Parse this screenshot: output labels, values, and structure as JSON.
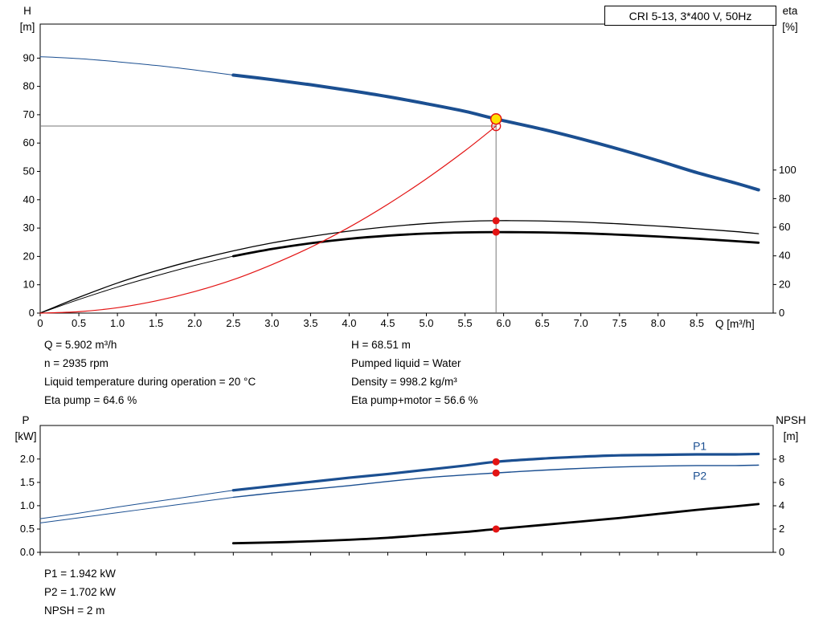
{
  "colors": {
    "curve_blue": "#1b4f91",
    "curve_black": "#000000",
    "curve_red": "#e31414",
    "marker_yellow": "#ffe000",
    "guide_gray": "#777777"
  },
  "annotations": {
    "top_left": [
      "Q = 5.902 m³/h",
      "n = 2935 rpm",
      "Liquid temperature during operation = 20 °C",
      "Eta pump = 64.6 %"
    ],
    "top_right": [
      "H = 68.51 m",
      "Pumped liquid = Water",
      "Density = 998.2 kg/m³",
      "Eta pump+motor = 56.6 %"
    ],
    "bottom": [
      "P1 = 1.942 kW",
      "P2 = 1.702 kW",
      "NPSH = 2 m"
    ]
  },
  "chart_data": [
    {
      "type": "line",
      "title": "CRI 5-13, 3*400 V, 50Hz",
      "x_axis": {
        "label": "Q [m³/h]",
        "min": 0,
        "max": 9.49,
        "tick_labels": [
          "0",
          "0.5",
          "1.0",
          "1.5",
          "2.0",
          "2.5",
          "3.0",
          "3.5",
          "4.0",
          "4.5",
          "5.0",
          "5.5",
          "6.0",
          "6.5",
          "7.0",
          "7.5",
          "8.0",
          "8.5"
        ]
      },
      "y_left": {
        "symbol": "H",
        "unit": "[m]",
        "min": 0,
        "max": 102,
        "tick_labels": [
          "0",
          "10",
          "20",
          "30",
          "40",
          "50",
          "60",
          "70",
          "80",
          "90"
        ]
      },
      "y_right": {
        "symbol": "eta",
        "unit": "[%]",
        "min": 0,
        "max": 202,
        "tick_labels": [
          "0",
          "20",
          "40",
          "60",
          "80",
          "100"
        ]
      },
      "series": [
        {
          "name": "qh-leadin",
          "axis": "left",
          "color": "#1b4f91",
          "width": 1,
          "points": [
            [
              0,
              90.5
            ],
            [
              0.5,
              89.8
            ],
            [
              1,
              88.7
            ],
            [
              1.5,
              87.4
            ],
            [
              2,
              85.8
            ],
            [
              2.5,
              84
            ]
          ]
        },
        {
          "name": "qh",
          "axis": "left",
          "color": "#1b4f91",
          "width": 4,
          "points": [
            [
              2.5,
              84
            ],
            [
              3,
              82.4
            ],
            [
              3.5,
              80.6
            ],
            [
              4,
              78.6
            ],
            [
              4.5,
              76.4
            ],
            [
              5,
              73.9
            ],
            [
              5.5,
              71.2
            ],
            [
              5.902,
              68.51
            ],
            [
              6.5,
              64.9
            ],
            [
              7,
              61.5
            ],
            [
              7.5,
              57.8
            ],
            [
              8,
              53.8
            ],
            [
              8.5,
              49.6
            ],
            [
              9,
              45.9
            ],
            [
              9.3,
              43.5
            ]
          ]
        },
        {
          "name": "eta-pump",
          "axis": "right",
          "color": "#000000",
          "width": 1.3,
          "points": [
            [
              0,
              0
            ],
            [
              0.5,
              11
            ],
            [
              1,
              21
            ],
            [
              1.5,
              29.5
            ],
            [
              2,
              37
            ],
            [
              2.5,
              43.5
            ],
            [
              3,
              49
            ],
            [
              3.5,
              53.5
            ],
            [
              4,
              57.3
            ],
            [
              4.5,
              60.3
            ],
            [
              5,
              62.6
            ],
            [
              5.5,
              64.1
            ],
            [
              5.902,
              64.6
            ],
            [
              6.5,
              64.4
            ],
            [
              7,
              63.6
            ],
            [
              7.5,
              62.4
            ],
            [
              8,
              60.8
            ],
            [
              8.5,
              59
            ],
            [
              9,
              57
            ],
            [
              9.3,
              55.5
            ]
          ]
        },
        {
          "name": "eta-pump-motor-leadin",
          "axis": "right",
          "color": "#000000",
          "width": 1,
          "points": [
            [
              0,
              0
            ],
            [
              0.5,
              9.5
            ],
            [
              1,
              18.2
            ],
            [
              1.5,
              26
            ],
            [
              2,
              33.3
            ],
            [
              2.5,
              39.8
            ]
          ]
        },
        {
          "name": "eta-pump-motor",
          "axis": "right",
          "color": "#000000",
          "width": 2.8,
          "points": [
            [
              2.5,
              39.8
            ],
            [
              3,
              44.8
            ],
            [
              3.5,
              48.8
            ],
            [
              4,
              51.9
            ],
            [
              4.5,
              54.1
            ],
            [
              5,
              55.6
            ],
            [
              5.5,
              56.4
            ],
            [
              5.902,
              56.6
            ],
            [
              6.5,
              56.4
            ],
            [
              7,
              55.8
            ],
            [
              7.5,
              54.8
            ],
            [
              8,
              53.5
            ],
            [
              8.5,
              52
            ],
            [
              9,
              50.3
            ],
            [
              9.3,
              49.2
            ]
          ]
        },
        {
          "name": "system-curve",
          "axis": "left",
          "color": "#e31414",
          "width": 1.2,
          "points": [
            [
              0,
              0
            ],
            [
              0.5,
              0.5
            ],
            [
              1,
              1.9
            ],
            [
              1.5,
              4.3
            ],
            [
              2,
              7.6
            ],
            [
              2.5,
              11.8
            ],
            [
              3,
              17.1
            ],
            [
              3.5,
              23.2
            ],
            [
              4,
              30.3
            ],
            [
              4.5,
              38.4
            ],
            [
              5,
              47.4
            ],
            [
              5.5,
              57.3
            ],
            [
              5.902,
              66
            ]
          ]
        }
      ],
      "guides": [
        {
          "type": "h",
          "axis": "left",
          "y": 66,
          "x1": 0,
          "x2": 5.902,
          "color": "#777777"
        },
        {
          "type": "v",
          "axis": "left",
          "x": 5.902,
          "y1": 68.51,
          "y2": 0,
          "color": "#777777"
        }
      ],
      "markers": [
        {
          "name": "requested-duty-marker",
          "axis": "left",
          "x": 5.902,
          "y": 66,
          "r": 5.5,
          "fill": "none",
          "stroke": "#e31414",
          "stroke_width": 1.3
        },
        {
          "name": "duty-point-marker",
          "axis": "left",
          "x": 5.902,
          "y": 68.51,
          "r": 6.5,
          "fill": "#ffe000",
          "stroke": "#e31414",
          "stroke_width": 1.5
        },
        {
          "name": "eta-pump-marker",
          "axis": "right",
          "x": 5.902,
          "y": 64.6,
          "r": 4.5,
          "fill": "#e31414"
        },
        {
          "name": "eta-pump-motor-marker",
          "axis": "right",
          "x": 5.902,
          "y": 56.6,
          "r": 4.5,
          "fill": "#e31414"
        }
      ],
      "operating_point": {
        "Q_m3h": 5.902,
        "H_m": 68.51,
        "eta_pump_pct": 64.6,
        "eta_pump_motor_pct": 56.6
      }
    },
    {
      "type": "line",
      "title": "",
      "x_axis": {
        "label": "",
        "min": 0,
        "max": 9.49,
        "tick_labels": [],
        "tick_values": [
          0,
          0.5,
          1,
          1.5,
          2,
          2.5,
          3,
          3.5,
          4,
          4.5,
          5,
          5.5,
          6,
          6.5,
          7,
          7.5,
          8,
          8.5
        ]
      },
      "y_left": {
        "symbol": "P",
        "unit": "[kW]",
        "min": 0,
        "max": 2.72,
        "tick_labels": [
          "0.0",
          "0.5",
          "1.0",
          "1.5",
          "2.0"
        ]
      },
      "y_right": {
        "symbol": "NPSH",
        "unit": "[m]",
        "min": 0,
        "max": 10.9,
        "tick_labels": [
          "0",
          "2",
          "4",
          "6",
          "8"
        ]
      },
      "series": [
        {
          "name": "p1-leadin",
          "axis": "left",
          "color": "#1b4f91",
          "width": 1,
          "points": [
            [
              0,
              0.72
            ],
            [
              0.5,
              0.84
            ],
            [
              1,
              0.97
            ],
            [
              1.5,
              1.09
            ],
            [
              2,
              1.21
            ],
            [
              2.5,
              1.33
            ]
          ]
        },
        {
          "name": "p1",
          "axis": "left",
          "color": "#1b4f91",
          "width": 3.2,
          "points": [
            [
              2.5,
              1.33
            ],
            [
              3,
              1.42
            ],
            [
              3.5,
              1.51
            ],
            [
              4,
              1.6
            ],
            [
              4.5,
              1.68
            ],
            [
              5,
              1.77
            ],
            [
              5.5,
              1.86
            ],
            [
              5.902,
              1.942
            ],
            [
              6.5,
              2.01
            ],
            [
              7,
              2.05
            ],
            [
              7.5,
              2.08
            ],
            [
              8,
              2.09
            ],
            [
              8.5,
              2.1
            ],
            [
              9,
              2.1
            ],
            [
              9.3,
              2.11
            ]
          ]
        },
        {
          "name": "p2-leadin",
          "axis": "left",
          "color": "#1b4f91",
          "width": 1,
          "points": [
            [
              0,
              0.63
            ],
            [
              0.5,
              0.74
            ],
            [
              1,
              0.85
            ],
            [
              1.5,
              0.96
            ],
            [
              2,
              1.07
            ],
            [
              2.5,
              1.18
            ]
          ]
        },
        {
          "name": "p2",
          "axis": "left",
          "color": "#1b4f91",
          "width": 1.4,
          "points": [
            [
              2.5,
              1.18
            ],
            [
              3,
              1.27
            ],
            [
              3.5,
              1.35
            ],
            [
              4,
              1.43
            ],
            [
              4.5,
              1.52
            ],
            [
              5,
              1.6
            ],
            [
              5.5,
              1.66
            ],
            [
              5.902,
              1.702
            ],
            [
              6.5,
              1.76
            ],
            [
              7,
              1.8
            ],
            [
              7.5,
              1.83
            ],
            [
              8,
              1.85
            ],
            [
              8.5,
              1.86
            ],
            [
              9,
              1.86
            ],
            [
              9.3,
              1.87
            ]
          ]
        },
        {
          "name": "npsh",
          "axis": "right",
          "color": "#000000",
          "width": 2.8,
          "points": [
            [
              2.5,
              0.78
            ],
            [
              3,
              0.85
            ],
            [
              3.5,
              0.95
            ],
            [
              4,
              1.08
            ],
            [
              4.5,
              1.25
            ],
            [
              5,
              1.5
            ],
            [
              5.5,
              1.75
            ],
            [
              5.902,
              2
            ],
            [
              6.5,
              2.35
            ],
            [
              7,
              2.65
            ],
            [
              7.5,
              2.95
            ],
            [
              8,
              3.3
            ],
            [
              8.5,
              3.65
            ],
            [
              9,
              3.95
            ],
            [
              9.3,
              4.15
            ]
          ]
        }
      ],
      "guides": [],
      "markers": [
        {
          "name": "p1-marker",
          "axis": "left",
          "x": 5.902,
          "y": 1.942,
          "r": 4.5,
          "fill": "#e31414"
        },
        {
          "name": "p2-marker",
          "axis": "left",
          "x": 5.902,
          "y": 1.702,
          "r": 4.5,
          "fill": "#e31414"
        },
        {
          "name": "npsh-marker",
          "axis": "right",
          "x": 5.902,
          "y": 2,
          "r": 4.5,
          "fill": "#e31414"
        }
      ],
      "series_labels": [
        {
          "name": "p1-label",
          "text": "P1",
          "axis": "left",
          "x": 8.45,
          "y": 2.28,
          "color": "#1b4f91"
        },
        {
          "name": "p2-label",
          "text": "P2",
          "axis": "left",
          "x": 8.45,
          "y": 1.64,
          "color": "#1b4f91"
        }
      ],
      "operating_point": {
        "P1_kW": 1.942,
        "P2_kW": 1.702,
        "NPSH_m": 2
      }
    }
  ]
}
